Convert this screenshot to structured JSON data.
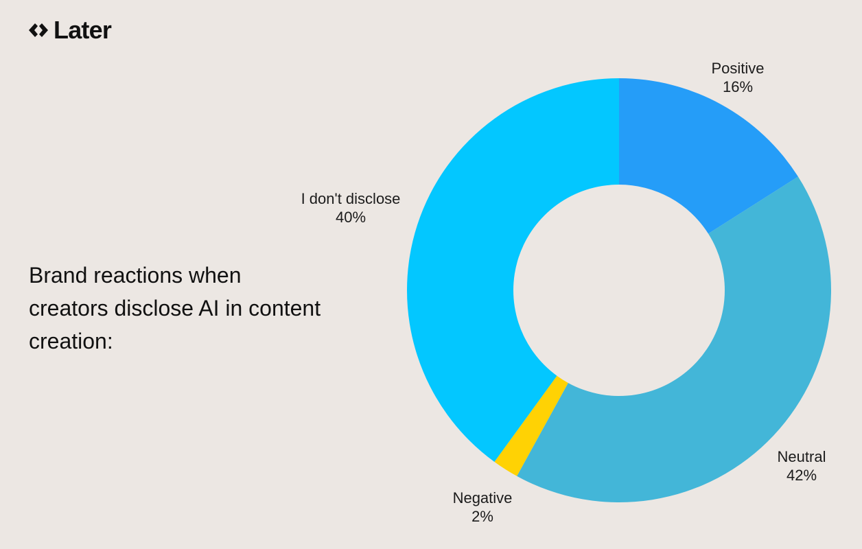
{
  "brand": {
    "name": "Later",
    "icon": "later-diamond-logo-icon"
  },
  "title": "Brand reactions when creators disclose AI in content creation:",
  "colors": {
    "background": "#ece7e3",
    "positive": "#259df8",
    "neutral": "#43b6d8",
    "negative": "#ffd204",
    "dont_disclose": "#03c7ff"
  },
  "chart_data": {
    "type": "pie",
    "donut": true,
    "start_angle_deg": 0,
    "direction": "clockwise",
    "slices": [
      {
        "label": "Positive",
        "value": 16,
        "value_label": "16%",
        "color": "#259df8"
      },
      {
        "label": "Neutral",
        "value": 42,
        "value_label": "42%",
        "color": "#43b6d8"
      },
      {
        "label": "Negative",
        "value": 2,
        "value_label": "2%",
        "color": "#ffd204"
      },
      {
        "label": "I don't disclose",
        "value": 40,
        "value_label": "40%",
        "color": "#03c7ff"
      }
    ]
  }
}
